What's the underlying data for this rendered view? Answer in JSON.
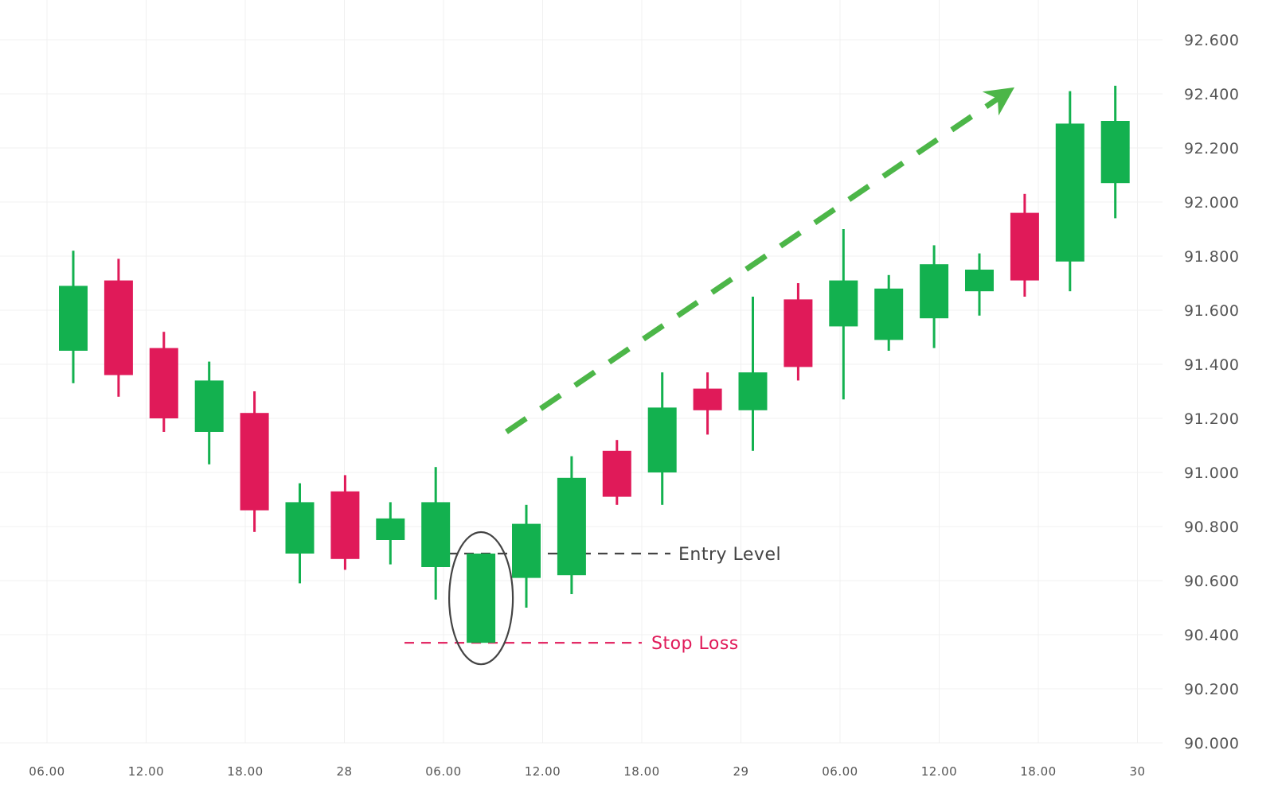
{
  "chart_data": {
    "type": "candlestick",
    "colors": {
      "up": "#13B14F",
      "down": "#E01A59",
      "trend": "#4CB648",
      "entry": "#444444",
      "stop": "#E01A59",
      "grid": "#F0F0F0"
    },
    "y_ticks": [
      "92.600",
      "92.400",
      "92.200",
      "92.000",
      "91.800",
      "91.600",
      "91.400",
      "91.200",
      "91.000",
      "90.800",
      "90.600",
      "90.400",
      "90.200",
      "90.000"
    ],
    "x_ticks": [
      "06.00",
      "12.00",
      "18.00",
      "28",
      "06.00",
      "12.00",
      "18.00",
      "29",
      "06.00",
      "12.00",
      "18.00",
      "30"
    ],
    "ylim": [
      90.0,
      92.6
    ],
    "grid": true,
    "candles": [
      {
        "open": 91.45,
        "close": 91.69,
        "high": 91.82,
        "low": 91.33
      },
      {
        "open": 91.71,
        "close": 91.36,
        "high": 91.79,
        "low": 91.28
      },
      {
        "open": 91.46,
        "close": 91.2,
        "high": 91.52,
        "low": 91.15
      },
      {
        "open": 91.15,
        "close": 91.34,
        "high": 91.41,
        "low": 91.03
      },
      {
        "open": 91.22,
        "close": 90.86,
        "high": 91.3,
        "low": 90.78
      },
      {
        "open": 90.7,
        "close": 90.89,
        "high": 90.96,
        "low": 90.59
      },
      {
        "open": 90.93,
        "close": 90.68,
        "high": 90.99,
        "low": 90.64
      },
      {
        "open": 90.75,
        "close": 90.83,
        "high": 90.89,
        "low": 90.66
      },
      {
        "open": 90.65,
        "close": 90.89,
        "high": 91.02,
        "low": 90.53
      },
      {
        "open": 90.37,
        "close": 90.7,
        "high": 90.7,
        "low": 90.37
      },
      {
        "open": 90.61,
        "close": 90.81,
        "high": 90.88,
        "low": 90.5
      },
      {
        "open": 90.62,
        "close": 90.98,
        "high": 91.06,
        "low": 90.55
      },
      {
        "open": 91.08,
        "close": 90.91,
        "high": 91.12,
        "low": 90.88
      },
      {
        "open": 91.0,
        "close": 91.24,
        "high": 91.37,
        "low": 90.88
      },
      {
        "open": 91.31,
        "close": 91.23,
        "high": 91.37,
        "low": 91.14
      },
      {
        "open": 91.23,
        "close": 91.37,
        "high": 91.65,
        "low": 91.08
      },
      {
        "open": 91.64,
        "close": 91.39,
        "high": 91.7,
        "low": 91.34
      },
      {
        "open": 91.54,
        "close": 91.71,
        "high": 91.9,
        "low": 91.27
      },
      {
        "open": 91.49,
        "close": 91.68,
        "high": 91.73,
        "low": 91.45
      },
      {
        "open": 91.57,
        "close": 91.77,
        "high": 91.84,
        "low": 91.46
      },
      {
        "open": 91.67,
        "close": 91.75,
        "high": 91.81,
        "low": 91.58
      },
      {
        "open": 91.96,
        "close": 91.71,
        "high": 92.03,
        "low": 91.65
      },
      {
        "open": 91.78,
        "close": 92.29,
        "high": 92.41,
        "low": 91.67
      },
      {
        "open": 92.07,
        "close": 92.3,
        "high": 92.43,
        "low": 91.94
      }
    ],
    "annotations": {
      "entry_label": "Entry Level",
      "entry_value": 90.7,
      "stop_label": "Stop Loss",
      "stop_value": 90.37,
      "highlighted_candle": 9
    }
  }
}
